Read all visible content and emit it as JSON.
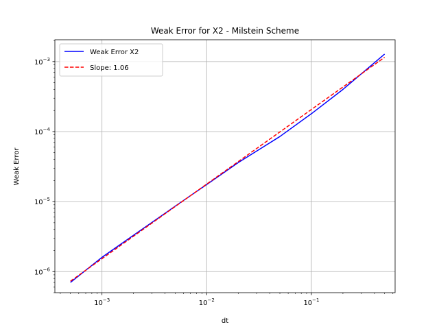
{
  "chart_data": {
    "type": "line",
    "title": "Weak Error for X2 - Milstein Scheme",
    "xlabel": "dt",
    "ylabel": "Weak Error",
    "xscale": "log",
    "yscale": "log",
    "xlim": [
      0.000355,
      0.63
    ],
    "ylim": [
      5e-07,
      0.00205
    ],
    "grid": true,
    "legend_position": "top-left",
    "x_major_ticks": [
      0.001,
      0.01,
      0.1
    ],
    "y_major_ticks": [
      1e-06,
      1e-05,
      0.0001,
      0.001
    ],
    "x_tick_labels": [
      {
        "base": "10",
        "exp": "−3"
      },
      {
        "base": "10",
        "exp": "−2"
      },
      {
        "base": "10",
        "exp": "−1"
      }
    ],
    "y_tick_labels": [
      {
        "base": "10",
        "exp": "−6"
      },
      {
        "base": "10",
        "exp": "−5"
      },
      {
        "base": "10",
        "exp": "−4"
      },
      {
        "base": "10",
        "exp": "−3"
      }
    ],
    "series": [
      {
        "name": "Weak Error X2",
        "color": "#0000ff",
        "style": "solid",
        "x": [
          0.0005,
          0.001,
          0.002,
          0.005,
          0.01,
          0.02,
          0.05,
          0.1,
          0.2,
          0.5
        ],
        "y": [
          7e-07,
          1.6e-06,
          3.3e-06,
          8.6e-06,
          1.75e-05,
          3.6e-05,
          8.5e-05,
          0.00018,
          0.0004,
          0.00128
        ]
      },
      {
        "name": "Slope: 1.06",
        "color": "#ff0000",
        "style": "dashed",
        "x": [
          0.0005,
          0.5
        ],
        "y": [
          7.3e-07,
          0.00115
        ]
      }
    ]
  }
}
